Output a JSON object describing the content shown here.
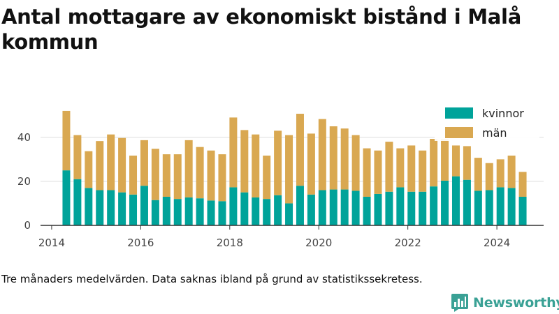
{
  "title": "Antal mottagare av ekonomiskt bistånd i Malå kommun",
  "caption": "Tre månaders medelvärden. Data saknas ibland på grund av statistikssekretess.",
  "brand": {
    "name": "Newsworthy",
    "icon": "newsworthy-logo-icon",
    "color": "#3aa195"
  },
  "colors": {
    "kvinnor": "#00a39a",
    "man": "#d9a851",
    "grid": "#dddddd",
    "axis": "#333333"
  },
  "chart_data": {
    "type": "bar",
    "stacked": true,
    "title": "Antal mottagare av ekonomiskt bistånd i Malå kommun",
    "xlabel": "",
    "ylabel": "",
    "xlim": [
      2013.75,
      2025.05
    ],
    "ylim": [
      0,
      58
    ],
    "x_ticks": [
      2014,
      2016,
      2018,
      2020,
      2022,
      2024
    ],
    "y_ticks": [
      0,
      20,
      40
    ],
    "grid": true,
    "legend_position": "top-right",
    "x": [
      2014.33,
      2014.58,
      2014.83,
      2015.08,
      2015.33,
      2015.58,
      2015.83,
      2016.08,
      2016.33,
      2016.58,
      2016.83,
      2017.08,
      2017.33,
      2017.58,
      2017.83,
      2018.08,
      2018.33,
      2018.58,
      2018.83,
      2019.08,
      2019.33,
      2019.58,
      2019.83,
      2020.08,
      2020.33,
      2020.58,
      2020.83,
      2021.08,
      2021.33,
      2021.58,
      2021.83,
      2022.08,
      2022.33,
      2022.58,
      2022.83,
      2023.08,
      2023.33,
      2023.58,
      2023.83,
      2024.08,
      2024.33,
      2024.58
    ],
    "series": [
      {
        "name": "kvinnor",
        "color": "#00a39a",
        "values": [
          25,
          21,
          17,
          16,
          16,
          15,
          14,
          18,
          11.5,
          13,
          12,
          12.7,
          12.3,
          11.3,
          11,
          17.3,
          15,
          12.7,
          12,
          13.7,
          10,
          18,
          14,
          16,
          16.3,
          16.3,
          15.7,
          13,
          14.3,
          15.3,
          17.3,
          15.3,
          15.3,
          17.7,
          20.3,
          22.3,
          20.7,
          15.7,
          16,
          17.3,
          17,
          13
        ]
      },
      {
        "name": "män",
        "color": "#d9a851",
        "values": [
          27,
          20,
          16.7,
          22.3,
          25.3,
          24.7,
          17.7,
          20.7,
          23.3,
          19.3,
          20.3,
          26,
          23.3,
          22.7,
          21.3,
          31.7,
          28.3,
          28.6,
          19.7,
          29.3,
          31,
          32.7,
          27.7,
          32.3,
          28.7,
          27.7,
          25.3,
          22,
          19.7,
          22.7,
          17.7,
          21,
          18.7,
          21.6,
          19,
          14,
          15.3,
          15,
          12.3,
          12.7,
          14.7,
          11.3
        ]
      }
    ]
  }
}
